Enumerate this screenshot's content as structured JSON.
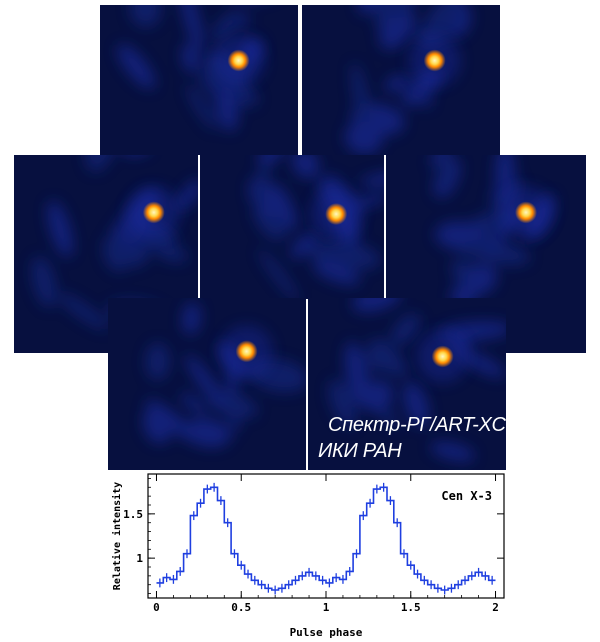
{
  "image_panels": [
    {
      "name": "x-ray-image-1",
      "source_label": ""
    },
    {
      "name": "x-ray-image-2",
      "source_label": ""
    },
    {
      "name": "x-ray-image-3",
      "source_label": ""
    },
    {
      "name": "x-ray-image-4",
      "source_label": ""
    },
    {
      "name": "x-ray-image-5",
      "source_label": ""
    },
    {
      "name": "x-ray-image-6",
      "source_label": ""
    },
    {
      "name": "x-ray-image-7",
      "source_label": ""
    }
  ],
  "caption": {
    "line1": "Спектр-РГ/ART-XC",
    "line2": "ИКИ РАН"
  },
  "colors": {
    "image_background": "#07103f",
    "source_core": "#fff7c0",
    "source_halo": "#ff8a00",
    "curve": "#1f3fe0"
  },
  "chart_data": {
    "type": "line",
    "step": true,
    "error_bars": true,
    "title": "",
    "annotation": "Cen X-3",
    "xlabel": "Pulse phase",
    "ylabel": "Relative intensity",
    "xlim": [
      -0.05,
      2.05
    ],
    "ylim": [
      0.55,
      1.95
    ],
    "xticks": [
      0,
      0.5,
      1,
      1.5,
      2
    ],
    "xtick_labels": [
      "0",
      "0.5",
      "1",
      "1.5",
      "2"
    ],
    "yticks": [
      1,
      1.5
    ],
    "ytick_labels": [
      "1",
      "1.5"
    ],
    "bin_width": 0.04,
    "x": [
      0.02,
      0.06,
      0.1,
      0.14,
      0.18,
      0.22,
      0.26,
      0.3,
      0.34,
      0.38,
      0.42,
      0.46,
      0.5,
      0.54,
      0.58,
      0.62,
      0.66,
      0.7,
      0.74,
      0.78,
      0.82,
      0.86,
      0.9,
      0.94,
      0.98,
      1.02,
      1.06,
      1.1,
      1.14,
      1.18,
      1.22,
      1.26,
      1.3,
      1.34,
      1.38,
      1.42,
      1.46,
      1.5,
      1.54,
      1.58,
      1.62,
      1.66,
      1.7,
      1.74,
      1.78,
      1.82,
      1.86,
      1.9,
      1.94,
      1.98
    ],
    "y": [
      0.72,
      0.78,
      0.76,
      0.85,
      1.05,
      1.48,
      1.62,
      1.78,
      1.8,
      1.65,
      1.4,
      1.05,
      0.92,
      0.82,
      0.75,
      0.7,
      0.66,
      0.64,
      0.66,
      0.7,
      0.75,
      0.8,
      0.84,
      0.8,
      0.75,
      0.72,
      0.78,
      0.76,
      0.85,
      1.05,
      1.48,
      1.62,
      1.78,
      1.8,
      1.65,
      1.4,
      1.05,
      0.92,
      0.82,
      0.75,
      0.7,
      0.66,
      0.64,
      0.66,
      0.7,
      0.75,
      0.8,
      0.84,
      0.8,
      0.75
    ],
    "yerr": 0.05
  }
}
